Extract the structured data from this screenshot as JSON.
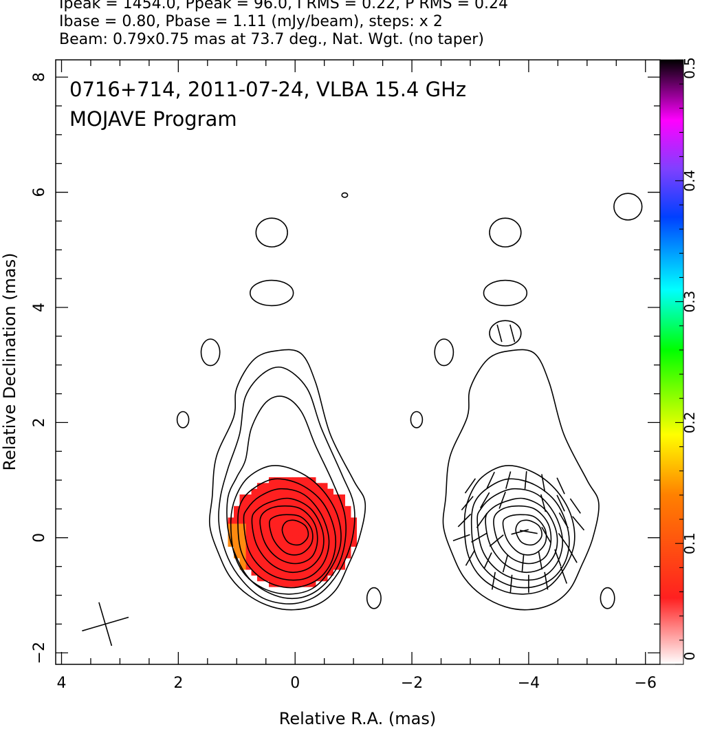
{
  "header": {
    "line1": "Ipeak = 1454.0, Ppeak = 96.0, I RMS = 0.22, P RMS = 0.24",
    "line2": "Ibase = 0.80, Pbase = 1.11 (mJy/beam), steps: x 2",
    "line3": "Beam: 0.79x0.75 mas at 73.7 deg., Nat. Wgt. (no taper)"
  },
  "chart_data": {
    "type": "heatmap",
    "annotation": [
      "0716+714, 2011-07-24, VLBA 15.4 GHz",
      "MOJAVE Program"
    ],
    "xlabel": "Relative R.A. (mas)",
    "ylabel": "Relative Declination (mas)",
    "xlim": [
      4.1,
      -6.25
    ],
    "ylim": [
      -2.2,
      8.3
    ],
    "xticks": [
      4,
      2,
      0,
      -2,
      -4,
      -6
    ],
    "xtick_labels": [
      "4",
      "2",
      "0",
      "−2",
      "−4",
      "−6"
    ],
    "yticks": [
      -2,
      0,
      2,
      4,
      6,
      8
    ],
    "ytick_labels": [
      "−2",
      "0",
      "2",
      "4",
      "6",
      "8"
    ],
    "colorbar": {
      "range": [
        0,
        0.5
      ],
      "ticks": [
        0,
        0.1,
        0.2,
        0.3,
        0.4,
        0.5
      ],
      "tick_labels": [
        "0",
        "0.1",
        "0.2",
        "0.3",
        "0.4",
        "0.5"
      ],
      "colors": [
        "#ffffff",
        "#ff2020",
        "#ff8000",
        "#ffff00",
        "#00ff00",
        "#00ffff",
        "#0040ff",
        "#8040ff",
        "#ff00ff",
        "#000000"
      ]
    },
    "beam": {
      "major_mas": 0.79,
      "minor_mas": 0.75,
      "pa_deg": 73.7
    },
    "total_intensity_panel": {
      "core_position": [
        0,
        0.1
      ],
      "polarization_blob": {
        "center": [
          0.05,
          0.1
        ],
        "semi_major": 1.1,
        "semi_minor": 0.95,
        "value": 0.06,
        "color": "#ff2020"
      },
      "contours": [
        {
          "points": [
            [
              1.42,
              0.7
            ],
            [
              1.46,
              0.2
            ],
            [
              1.3,
              -0.3
            ],
            [
              1.1,
              -0.7
            ],
            [
              0.8,
              -1.0
            ],
            [
              0.4,
              -1.2
            ],
            [
              0,
              -1.25
            ],
            [
              -0.4,
              -1.15
            ],
            [
              -0.7,
              -0.9
            ],
            [
              -0.9,
              -0.5
            ],
            [
              -1.1,
              0.0
            ],
            [
              -1.2,
              0.6
            ],
            [
              -1.0,
              1.0
            ],
            [
              -0.6,
              1.8
            ],
            [
              -0.35,
              2.7
            ],
            [
              -0.1,
              3.2
            ],
            [
              0.3,
              3.25
            ],
            [
              0.7,
              3.1
            ],
            [
              1.0,
              2.6
            ],
            [
              1.05,
              2.1
            ],
            [
              1.35,
              1.4
            ]
          ]
        },
        {
          "points": [
            [
              1.28,
              0.7
            ],
            [
              1.3,
              0.2
            ],
            [
              1.15,
              -0.35
            ],
            [
              0.9,
              -0.75
            ],
            [
              0.55,
              -1.05
            ],
            [
              0.1,
              -1.15
            ],
            [
              -0.3,
              -1.05
            ],
            [
              -0.6,
              -0.8
            ],
            [
              -0.85,
              -0.4
            ],
            [
              -1.0,
              0.1
            ],
            [
              -1.0,
              0.6
            ],
            [
              -0.8,
              1.1
            ],
            [
              -0.45,
              1.9
            ],
            [
              -0.2,
              2.6
            ],
            [
              0.2,
              2.95
            ],
            [
              0.55,
              2.85
            ],
            [
              0.85,
              2.45
            ],
            [
              0.95,
              1.8
            ],
            [
              1.15,
              1.2
            ]
          ]
        },
        {
          "points": [
            [
              1.15,
              0.7
            ],
            [
              1.15,
              0.15
            ],
            [
              1.0,
              -0.35
            ],
            [
              0.75,
              -0.75
            ],
            [
              0.35,
              -1.0
            ],
            [
              -0.05,
              -1.05
            ],
            [
              -0.4,
              -0.9
            ],
            [
              -0.7,
              -0.55
            ],
            [
              -0.85,
              -0.1
            ],
            [
              -0.85,
              0.4
            ],
            [
              -0.65,
              0.95
            ],
            [
              -0.35,
              1.6
            ],
            [
              -0.1,
              2.2
            ],
            [
              0.2,
              2.45
            ],
            [
              0.5,
              2.35
            ],
            [
              0.75,
              1.9
            ],
            [
              0.85,
              1.35
            ],
            [
              1.0,
              1.05
            ]
          ]
        },
        {
          "points": [
            [
              1.1,
              0.3
            ],
            [
              1.05,
              -0.25
            ],
            [
              0.85,
              -0.65
            ],
            [
              0.5,
              -0.9
            ],
            [
              0.1,
              -0.98
            ],
            [
              -0.3,
              -0.88
            ],
            [
              -0.6,
              -0.55
            ],
            [
              -0.78,
              -0.1
            ],
            [
              -0.72,
              0.4
            ],
            [
              -0.45,
              0.85
            ],
            [
              -0.05,
              1.15
            ],
            [
              0.4,
              1.25
            ],
            [
              0.8,
              1.05
            ],
            [
              1.02,
              0.7
            ]
          ]
        },
        {
          "points": [
            [
              0.98,
              0.25
            ],
            [
              0.92,
              -0.25
            ],
            [
              0.7,
              -0.6
            ],
            [
              0.35,
              -0.82
            ],
            [
              -0.05,
              -0.86
            ],
            [
              -0.42,
              -0.7
            ],
            [
              -0.65,
              -0.35
            ],
            [
              -0.68,
              0.1
            ],
            [
              -0.48,
              0.6
            ],
            [
              -0.1,
              0.92
            ],
            [
              0.35,
              1.02
            ],
            [
              0.72,
              0.85
            ],
            [
              0.93,
              0.6
            ]
          ]
        },
        {
          "points": [
            [
              0.88,
              0.3
            ],
            [
              0.8,
              -0.2
            ],
            [
              0.55,
              -0.55
            ],
            [
              0.2,
              -0.72
            ],
            [
              -0.2,
              -0.7
            ],
            [
              -0.48,
              -0.45
            ],
            [
              -0.58,
              -0.05
            ],
            [
              -0.45,
              0.4
            ],
            [
              -0.15,
              0.75
            ],
            [
              0.25,
              0.85
            ],
            [
              0.6,
              0.72
            ],
            [
              0.82,
              0.5
            ]
          ]
        },
        {
          "points": [
            [
              0.74,
              0.3
            ],
            [
              0.66,
              -0.12
            ],
            [
              0.42,
              -0.45
            ],
            [
              0.08,
              -0.6
            ],
            [
              -0.25,
              -0.52
            ],
            [
              -0.46,
              -0.25
            ],
            [
              -0.47,
              0.12
            ],
            [
              -0.27,
              0.5
            ],
            [
              0.08,
              0.68
            ],
            [
              0.42,
              0.62
            ],
            [
              0.66,
              0.48
            ]
          ]
        },
        {
          "points": [
            [
              0.6,
              0.3
            ],
            [
              0.52,
              -0.08
            ],
            [
              0.3,
              -0.35
            ],
            [
              0.0,
              -0.45
            ],
            [
              -0.27,
              -0.35
            ],
            [
              -0.38,
              -0.08
            ],
            [
              -0.33,
              0.25
            ],
            [
              -0.1,
              0.5
            ],
            [
              0.22,
              0.55
            ],
            [
              0.48,
              0.48
            ]
          ]
        },
        {
          "points": [
            [
              0.44,
              0.25
            ],
            [
              0.36,
              -0.05
            ],
            [
              0.15,
              -0.27
            ],
            [
              -0.1,
              -0.28
            ],
            [
              -0.28,
              -0.1
            ],
            [
              -0.28,
              0.15
            ],
            [
              -0.1,
              0.36
            ],
            [
              0.15,
              0.4
            ],
            [
              0.36,
              0.36
            ]
          ]
        },
        {
          "points": [
            [
              0.22,
              0.12
            ],
            [
              0.12,
              -0.08
            ],
            [
              -0.08,
              -0.12
            ],
            [
              -0.22,
              0.02
            ],
            [
              -0.18,
              0.2
            ],
            [
              0.0,
              0.3
            ],
            [
              0.16,
              0.27
            ]
          ]
        }
      ],
      "islands": [
        {
          "center": [
            0.4,
            5.3
          ],
          "rx": 0.27,
          "ry": 0.25
        },
        {
          "center": [
            0.4,
            4.25
          ],
          "rx": 0.37,
          "ry": 0.22
        },
        {
          "center": [
            1.45,
            3.22
          ],
          "rx": 0.16,
          "ry": 0.23
        },
        {
          "center": [
            1.92,
            2.05
          ],
          "rx": 0.1,
          "ry": 0.14
        },
        {
          "center": [
            -1.35,
            -1.05
          ],
          "rx": 0.12,
          "ry": 0.18
        },
        {
          "center": [
            -0.85,
            5.95
          ],
          "rx": 0.05,
          "ry": 0.04
        }
      ]
    },
    "polarization_panel": {
      "offset_ra": -4.0,
      "islands": [
        {
          "center": [
            -3.6,
            5.3
          ],
          "rx": 0.27,
          "ry": 0.25
        },
        {
          "center": [
            -3.6,
            4.25
          ],
          "rx": 0.37,
          "ry": 0.22
        },
        {
          "center": [
            -3.6,
            3.55
          ],
          "rx": 0.27,
          "ry": 0.22
        },
        {
          "center": [
            -2.55,
            3.22
          ],
          "rx": 0.16,
          "ry": 0.23
        },
        {
          "center": [
            -2.08,
            2.05
          ],
          "rx": 0.1,
          "ry": 0.14
        },
        {
          "center": [
            -5.35,
            -1.05
          ],
          "rx": 0.12,
          "ry": 0.18
        },
        {
          "center": [
            -5.7,
            5.75
          ],
          "rx": 0.24,
          "ry": 0.23
        }
      ],
      "vectors": [
        [
          -3.0,
          0.9,
          35
        ],
        [
          -3.35,
          1.0,
          25
        ],
        [
          -3.65,
          1.0,
          15
        ],
        [
          -3.95,
          1.0,
          5
        ],
        [
          -4.25,
          0.95,
          -10
        ],
        [
          -4.55,
          0.9,
          -25
        ],
        [
          -2.95,
          0.6,
          40
        ],
        [
          -3.25,
          0.65,
          30
        ],
        [
          -3.55,
          0.65,
          20
        ],
        [
          -4.25,
          0.6,
          -15
        ],
        [
          -4.55,
          0.6,
          -25
        ],
        [
          -4.8,
          0.55,
          -35
        ],
        [
          -2.9,
          0.3,
          45
        ],
        [
          -3.2,
          0.3,
          35
        ],
        [
          -4.6,
          0.3,
          -30
        ],
        [
          -4.85,
          0.25,
          -40
        ],
        [
          -2.85,
          0.0,
          70
        ],
        [
          -3.15,
          0.0,
          60
        ],
        [
          -3.45,
          -0.05,
          50
        ],
        [
          -3.85,
          0.1,
          75
        ],
        [
          -4.0,
          0.1,
          -80
        ],
        [
          -4.3,
          0.05,
          -30
        ],
        [
          -4.6,
          -0.05,
          -35
        ],
        [
          -3.0,
          -0.35,
          30
        ],
        [
          -3.3,
          -0.4,
          25
        ],
        [
          -3.6,
          -0.45,
          15
        ],
        [
          -3.9,
          -0.45,
          5
        ],
        [
          -4.2,
          -0.4,
          -10
        ],
        [
          -4.5,
          -0.35,
          -20
        ],
        [
          -4.75,
          -0.3,
          -30
        ],
        [
          -3.4,
          -0.75,
          10
        ],
        [
          -3.7,
          -0.8,
          5
        ],
        [
          -4.0,
          -0.8,
          0
        ],
        [
          -4.3,
          -0.75,
          -10
        ],
        [
          -4.6,
          -0.65,
          -20
        ],
        [
          -3.5,
          3.55,
          -15
        ],
        [
          -3.72,
          3.55,
          -15
        ]
      ]
    }
  }
}
